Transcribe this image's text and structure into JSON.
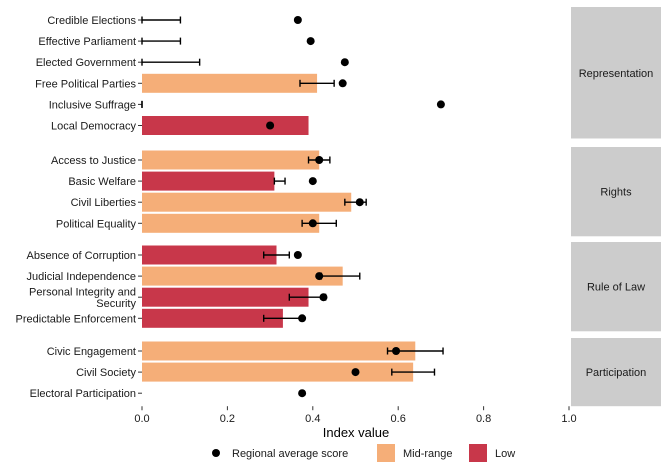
{
  "chart_data": {
    "type": "bar",
    "xlabel": "Index value",
    "xlim": [
      0,
      1
    ],
    "x_ticks": [
      "0.0",
      "0.2",
      "0.4",
      "0.6",
      "0.8",
      "1.0"
    ],
    "x_tick_values": [
      0,
      0.2,
      0.4,
      0.6,
      0.8,
      1.0
    ],
    "colors": {
      "Mid-range": "#f5ae78",
      "Low": "#c8374a",
      "point": "#000000",
      "strip": "#cccccc"
    },
    "legend": {
      "position": "bottom",
      "point_label": "Regional average score",
      "items": [
        "Mid-range",
        "Low"
      ]
    },
    "panels": [
      {
        "name": "Representation",
        "rows": [
          {
            "label": "Credible Elections",
            "bar": null,
            "category": null,
            "err": [
              0.0,
              0.09
            ],
            "point": 0.365
          },
          {
            "label": "Effective Parliament",
            "bar": null,
            "category": null,
            "err": [
              0.0,
              0.09
            ],
            "point": 0.395
          },
          {
            "label": "Elected Government",
            "bar": null,
            "category": null,
            "err": [
              0.0,
              0.135
            ],
            "point": 0.475
          },
          {
            "label": "Free Political Parties",
            "bar": 0.41,
            "category": "Mid-range",
            "err": [
              0.37,
              0.45
            ],
            "point": 0.47
          },
          {
            "label": "Inclusive Suffrage",
            "bar": null,
            "category": null,
            "err": [
              0.0,
              0.0
            ],
            "point": 0.7
          },
          {
            "label": "Local Democracy",
            "bar": 0.39,
            "category": "Low",
            "err": null,
            "point": 0.3
          }
        ]
      },
      {
        "name": "Rights",
        "rows": [
          {
            "label": "Access to Justice",
            "bar": 0.415,
            "category": "Mid-range",
            "err": [
              0.39,
              0.44
            ],
            "point": 0.415
          },
          {
            "label": "Basic Welfare",
            "bar": 0.31,
            "category": "Low",
            "err": [
              0.31,
              0.335
            ],
            "point": 0.4
          },
          {
            "label": "Civil Liberties",
            "bar": 0.49,
            "category": "Mid-range",
            "err": [
              0.475,
              0.525
            ],
            "point": 0.51
          },
          {
            "label": "Political Equality",
            "bar": 0.415,
            "category": "Mid-range",
            "err": [
              0.375,
              0.455
            ],
            "point": 0.4
          }
        ]
      },
      {
        "name": "Rule of Law",
        "rows": [
          {
            "label": "Absence of Corruption",
            "bar": 0.315,
            "category": "Low",
            "err": [
              0.285,
              0.345
            ],
            "point": 0.365
          },
          {
            "label": "Judicial Independence",
            "bar": 0.47,
            "category": "Mid-range",
            "err": [
              0.42,
              0.51
            ],
            "point": 0.415
          },
          {
            "label": "Personal Integrity and\nSecurity",
            "bar": 0.39,
            "category": "Low",
            "err": [
              0.345,
              0.43
            ],
            "point": 0.425
          },
          {
            "label": "Predictable Enforcement",
            "bar": 0.33,
            "category": "Low",
            "err": [
              0.285,
              0.375
            ],
            "point": 0.375
          }
        ]
      },
      {
        "name": "Participation",
        "rows": [
          {
            "label": "Civic Engagement",
            "bar": 0.64,
            "category": "Mid-range",
            "err": [
              0.575,
              0.705
            ],
            "point": 0.595
          },
          {
            "label": "Civil Society",
            "bar": 0.635,
            "category": "Mid-range",
            "err": [
              0.585,
              0.685
            ],
            "point": 0.5
          },
          {
            "label": "Electoral Participation",
            "bar": null,
            "category": null,
            "err": null,
            "point": 0.375
          }
        ]
      }
    ]
  }
}
